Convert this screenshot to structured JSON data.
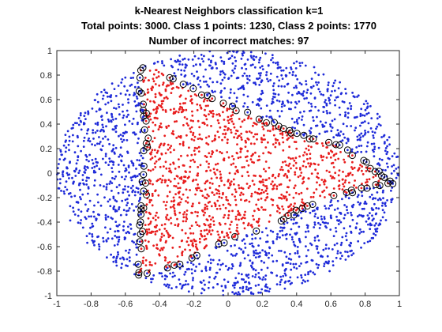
{
  "chart_data": {
    "type": "scatter",
    "title_lines": [
      "k-Nearest Neighbors classification k=1",
      "Total points: 3000. Class 1 points: 1230, Class 2 points: 1770",
      "Number of incorrect matches: 97"
    ],
    "xlabel": "",
    "ylabel": "",
    "xlim": [
      -1,
      1
    ],
    "ylim": [
      -1,
      1
    ],
    "x_ticks": [
      "-1",
      "-0.8",
      "-0.6",
      "-0.4",
      "-0.2",
      "0",
      "0.2",
      "0.4",
      "0.6",
      "0.8",
      "1"
    ],
    "y_ticks": [
      "1",
      "0.8",
      "0.6",
      "0.4",
      "0.2",
      "0",
      "-0.2",
      "-0.4",
      "-0.6",
      "-0.8",
      "-1"
    ],
    "total_points": 3000,
    "class1_points": 1230,
    "class2_points": 1770,
    "incorrect_matches": 97,
    "series": [
      {
        "color": "#e81d1d",
        "region": "inner polygon",
        "count": 1230
      },
      {
        "color": "#1f2bd9",
        "region": "outer disc (radius 1)",
        "count": 1770
      }
    ],
    "class1_boundary": [
      [
        -0.52,
        0.84
      ],
      [
        -0.42,
        0.87
      ],
      [
        -0.3,
        0.74
      ],
      [
        -0.2,
        0.68
      ],
      [
        0.2,
        0.43
      ],
      [
        0.32,
        0.38
      ],
      [
        0.42,
        0.3
      ],
      [
        0.55,
        0.27
      ],
      [
        0.65,
        0.22
      ],
      [
        0.8,
        0.08
      ],
      [
        0.95,
        -0.08
      ],
      [
        0.8,
        -0.12
      ],
      [
        0.55,
        -0.22
      ],
      [
        0.42,
        -0.3
      ],
      [
        0.32,
        -0.38
      ],
      [
        0.2,
        -0.44
      ],
      [
        0.05,
        -0.52
      ],
      [
        -0.1,
        -0.6
      ],
      [
        -0.22,
        -0.7
      ],
      [
        -0.3,
        -0.75
      ],
      [
        -0.42,
        -0.8
      ],
      [
        -0.53,
        -0.83
      ],
      [
        -0.5,
        -0.4
      ],
      [
        -0.48,
        0.1
      ],
      [
        -0.48,
        0.4
      ]
    ],
    "misclassified_marker": "black open circle",
    "grid": false,
    "legend": "none"
  }
}
